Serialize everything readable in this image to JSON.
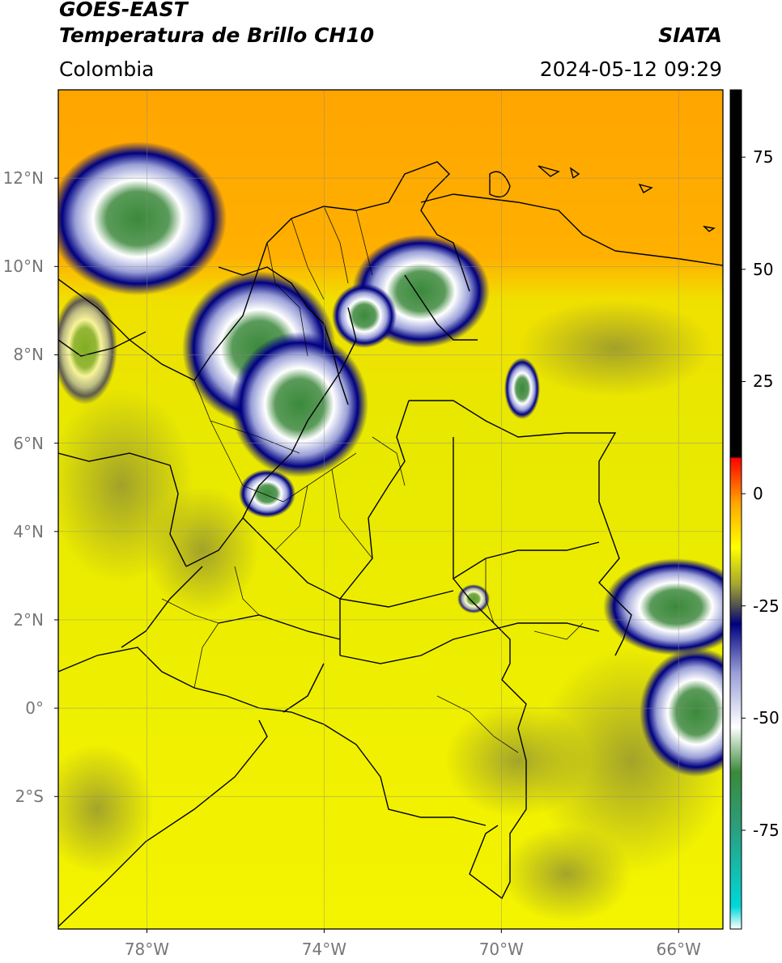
{
  "header": {
    "satellite": "GOES-EAST",
    "product": "Temperatura de Brillo CH10",
    "region": "Colombia",
    "source": "SIATA",
    "datetime": "2024-05-12 09:29"
  },
  "map": {
    "lat_ticks": [
      "12°N",
      "10°N",
      "8°N",
      "6°N",
      "4°N",
      "2°N",
      "0°",
      "2°S"
    ],
    "lon_ticks": [
      "78°W",
      "74°W",
      "70°W",
      "66°W"
    ],
    "lat_values": [
      12,
      10,
      8,
      6,
      4,
      2,
      0,
      -2
    ],
    "lon_values": [
      -78,
      -74,
      -70,
      -66
    ],
    "extent": {
      "lon_min": -80.0,
      "lon_max": -65.0,
      "lat_min": -5.0,
      "lat_max": 14.0
    },
    "gridlines": true
  },
  "colorbar": {
    "ticks": [
      "75",
      "50",
      "25",
      "0",
      "-25",
      "-50",
      "-75"
    ],
    "values": [
      75,
      50,
      25,
      0,
      -25,
      -50,
      -75
    ],
    "range": [
      -97,
      90
    ],
    "stops": [
      {
        "value": -97,
        "color": "#ffffff"
      },
      {
        "value": -92,
        "color": "#00d8d8"
      },
      {
        "value": -75,
        "color": "#2aa080"
      },
      {
        "value": -62,
        "color": "#3a8a3a"
      },
      {
        "value": -52,
        "color": "#ffffff"
      },
      {
        "value": -40,
        "color": "#9aa0d8"
      },
      {
        "value": -29,
        "color": "#000080"
      },
      {
        "value": -25,
        "color": "#505050"
      },
      {
        "value": -20,
        "color": "#a8a830"
      },
      {
        "value": -12,
        "color": "#ffff00"
      },
      {
        "value": -2,
        "color": "#ffa500"
      },
      {
        "value": 8,
        "color": "#ff0000"
      },
      {
        "value": 8.1,
        "color": "#000000"
      },
      {
        "value": 90,
        "color": "#000000"
      }
    ]
  }
}
